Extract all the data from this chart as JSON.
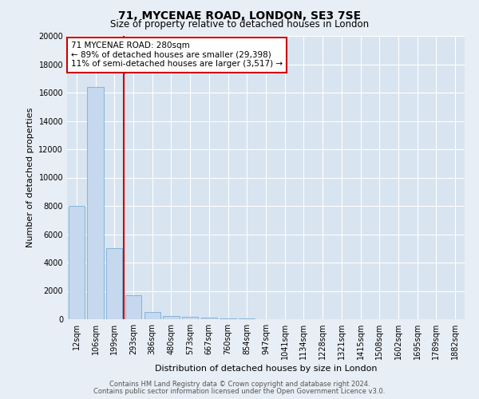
{
  "title_line1": "71, MYCENAE ROAD, LONDON, SE3 7SE",
  "title_line2": "Size of property relative to detached houses in London",
  "xlabel": "Distribution of detached houses by size in London",
  "ylabel": "Number of detached properties",
  "footer_line1": "Contains HM Land Registry data © Crown copyright and database right 2024.",
  "footer_line2": "Contains public sector information licensed under the Open Government Licence v3.0.",
  "categories": [
    "12sqm",
    "106sqm",
    "199sqm",
    "293sqm",
    "386sqm",
    "480sqm",
    "573sqm",
    "667sqm",
    "760sqm",
    "854sqm",
    "947sqm",
    "1041sqm",
    "1134sqm",
    "1228sqm",
    "1321sqm",
    "1415sqm",
    "1508sqm",
    "1602sqm",
    "1695sqm",
    "1789sqm",
    "1882sqm"
  ],
  "values": [
    8000,
    16400,
    5000,
    1700,
    500,
    250,
    150,
    100,
    80,
    50,
    0,
    0,
    0,
    0,
    0,
    0,
    0,
    0,
    0,
    0,
    0
  ],
  "bar_color": "#c5d8ee",
  "bar_edge_color": "#7aaed4",
  "vline_x": 2.5,
  "vline_color": "#cc0000",
  "annotation_text": "71 MYCENAE ROAD: 280sqm\n← 89% of detached houses are smaller (29,398)\n11% of semi-detached houses are larger (3,517) →",
  "annotation_box_color": "#ffffff",
  "annotation_box_edge_color": "#cc0000",
  "ylim": [
    0,
    20000
  ],
  "yticks": [
    0,
    2000,
    4000,
    6000,
    8000,
    10000,
    12000,
    14000,
    16000,
    18000,
    20000
  ],
  "background_color": "#e8eef5",
  "plot_bg_color": "#d8e4f0",
  "title1_fontsize": 10,
  "title2_fontsize": 8.5,
  "xlabel_fontsize": 8,
  "ylabel_fontsize": 8,
  "tick_fontsize": 7,
  "footer_fontsize": 6,
  "annot_fontsize": 7.5
}
